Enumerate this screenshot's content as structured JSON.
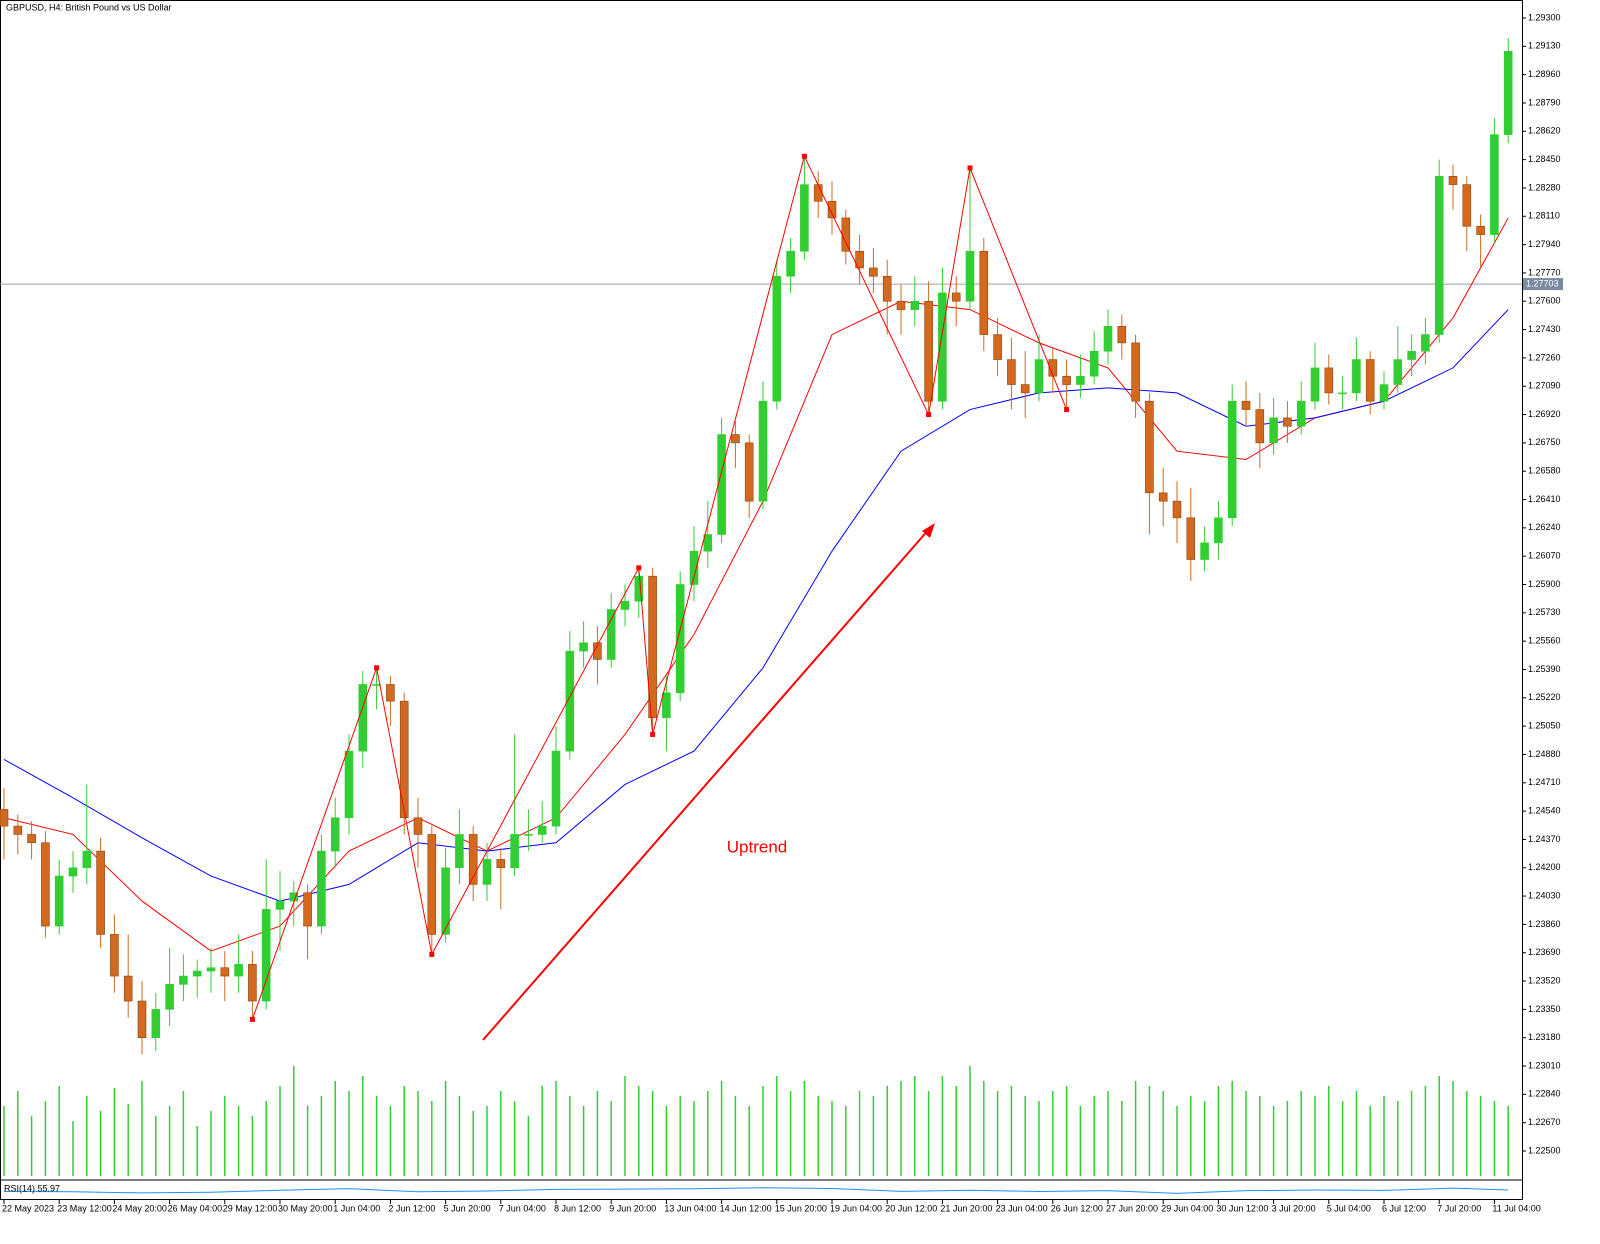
{
  "chart_data": {
    "type": "candlestick",
    "title": "GBPUSD, H4: British Pound vs US Dollar",
    "up_color": "#32cd32",
    "down_color": "#d2691e",
    "categories": [
      "22 May 2023",
      null,
      null,
      null,
      "23 May 12:00",
      null,
      null,
      null,
      "24 May 20:00",
      null,
      null,
      null,
      "26 May 04:00",
      null,
      null,
      null,
      "29 May 12:00",
      null,
      null,
      null,
      "30 May 20:00",
      null,
      null,
      null,
      "1 Jun 04:00",
      null,
      null,
      null,
      "2 Jun 12:00",
      null,
      null,
      null,
      "5 Jun 20:00",
      null,
      null,
      null,
      "7 Jun 04:00",
      null,
      null,
      null,
      "8 Jun 12:00",
      null,
      null,
      null,
      "9 Jun 20:00",
      null,
      null,
      null,
      "13 Jun 04:00",
      null,
      null,
      null,
      "14 Jun 12:00",
      null,
      null,
      null,
      "15 Jun 20:00",
      null,
      null,
      null,
      "19 Jun 04:00",
      null,
      null,
      null,
      "20 Jun 12:00",
      null,
      null,
      null,
      "21 Jun 20:00",
      null,
      null,
      null,
      "23 Jun 04:00",
      null,
      null,
      null,
      "26 Jun 12:00",
      null,
      null,
      null,
      "27 Jun 20:00",
      null,
      null,
      null,
      "29 Jun 04:00",
      null,
      null,
      null,
      "30 Jun 12:00",
      null,
      null,
      null,
      "3 Jul 20:00",
      null,
      null,
      null,
      "5 Jul 04:00",
      null,
      null,
      null,
      "6 Jul 12:00",
      null,
      null,
      null,
      "7 Jul 20:00",
      null,
      null,
      null,
      "11 Jul 04:00",
      null
    ],
    "ohlc": [
      [
        1.2455,
        1.2468,
        1.2425,
        1.2445
      ],
      [
        1.2445,
        1.2452,
        1.2428,
        1.244
      ],
      [
        1.244,
        1.2448,
        1.2425,
        1.2435
      ],
      [
        1.2435,
        1.2442,
        1.2378,
        1.2385
      ],
      [
        1.2385,
        1.2425,
        1.238,
        1.2415
      ],
      [
        1.2415,
        1.243,
        1.2405,
        1.242
      ],
      [
        1.242,
        1.247,
        1.241,
        1.243
      ],
      [
        1.243,
        1.2438,
        1.2372,
        1.238
      ],
      [
        1.238,
        1.2392,
        1.2345,
        1.2355
      ],
      [
        1.2355,
        1.238,
        1.233,
        1.234
      ],
      [
        1.234,
        1.2352,
        1.2308,
        1.2318
      ],
      [
        1.2318,
        1.2345,
        1.231,
        1.2335
      ],
      [
        1.2335,
        1.2372,
        1.2325,
        1.235
      ],
      [
        1.235,
        1.2368,
        1.234,
        1.2355
      ],
      [
        1.2355,
        1.2365,
        1.2342,
        1.2358
      ],
      [
        1.2358,
        1.2372,
        1.2345,
        1.236
      ],
      [
        1.236,
        1.237,
        1.234,
        1.2355
      ],
      [
        1.2355,
        1.238,
        1.2345,
        1.2362
      ],
      [
        1.2362,
        1.237,
        1.2329,
        1.234
      ],
      [
        1.234,
        1.2425,
        1.2335,
        1.2395
      ],
      [
        1.2395,
        1.2418,
        1.237,
        1.24
      ],
      [
        1.24,
        1.2412,
        1.2385,
        1.2405
      ],
      [
        1.2405,
        1.241,
        1.2365,
        1.2385
      ],
      [
        1.2385,
        1.244,
        1.238,
        1.243
      ],
      [
        1.243,
        1.2462,
        1.242,
        1.245
      ],
      [
        1.245,
        1.25,
        1.244,
        1.249
      ],
      [
        1.249,
        1.2538,
        1.248,
        1.253
      ],
      [
        1.253,
        1.254,
        1.2515,
        1.253
      ],
      [
        1.253,
        1.2535,
        1.2505,
        1.252
      ],
      [
        1.252,
        1.2525,
        1.244,
        1.245
      ],
      [
        1.245,
        1.2462,
        1.242,
        1.244
      ],
      [
        1.244,
        1.2445,
        1.2368,
        1.238
      ],
      [
        1.238,
        1.2432,
        1.2375,
        1.242
      ],
      [
        1.242,
        1.2455,
        1.241,
        1.244
      ],
      [
        1.244,
        1.2445,
        1.24,
        1.241
      ],
      [
        1.241,
        1.2435,
        1.24,
        1.2425
      ],
      [
        1.2425,
        1.2432,
        1.2395,
        1.242
      ],
      [
        1.242,
        1.25,
        1.2415,
        1.244
      ],
      [
        1.244,
        1.2455,
        1.243,
        1.244
      ],
      [
        1.244,
        1.246,
        1.2435,
        1.2445
      ],
      [
        1.2445,
        1.2505,
        1.244,
        1.249
      ],
      [
        1.249,
        1.2562,
        1.2485,
        1.255
      ],
      [
        1.255,
        1.2568,
        1.254,
        1.2555
      ],
      [
        1.2555,
        1.2565,
        1.253,
        1.2545
      ],
      [
        1.2545,
        1.2585,
        1.254,
        1.2575
      ],
      [
        1.2575,
        1.259,
        1.2565,
        1.258
      ],
      [
        1.258,
        1.26,
        1.257,
        1.2595
      ],
      [
        1.2595,
        1.26,
        1.25,
        1.251
      ],
      [
        1.251,
        1.2535,
        1.249,
        1.2525
      ],
      [
        1.2525,
        1.2598,
        1.252,
        1.259
      ],
      [
        1.259,
        1.2625,
        1.258,
        1.261
      ],
      [
        1.261,
        1.264,
        1.26,
        1.262
      ],
      [
        1.262,
        1.269,
        1.2615,
        1.268
      ],
      [
        1.268,
        1.2688,
        1.266,
        1.2675
      ],
      [
        1.2675,
        1.268,
        1.263,
        1.264
      ],
      [
        1.264,
        1.2712,
        1.2635,
        1.27
      ],
      [
        1.27,
        1.2785,
        1.2695,
        1.2775
      ],
      [
        1.2775,
        1.2798,
        1.2765,
        1.279
      ],
      [
        1.279,
        1.2847,
        1.2785,
        1.283
      ],
      [
        1.283,
        1.2838,
        1.281,
        1.282
      ],
      [
        1.282,
        1.2832,
        1.28,
        1.281
      ],
      [
        1.281,
        1.2815,
        1.2782,
        1.279
      ],
      [
        1.279,
        1.28,
        1.277,
        1.278
      ],
      [
        1.278,
        1.2792,
        1.2765,
        1.2775
      ],
      [
        1.2775,
        1.2785,
        1.274,
        1.276
      ],
      [
        1.276,
        1.277,
        1.274,
        1.2755
      ],
      [
        1.2755,
        1.2775,
        1.2745,
        1.276
      ],
      [
        1.276,
        1.2772,
        1.2692,
        1.27
      ],
      [
        1.27,
        1.278,
        1.2695,
        1.2765
      ],
      [
        1.2765,
        1.2775,
        1.2745,
        1.276
      ],
      [
        1.276,
        1.284,
        1.2755,
        1.279
      ],
      [
        1.279,
        1.2798,
        1.273,
        1.274
      ],
      [
        1.274,
        1.275,
        1.2715,
        1.2725
      ],
      [
        1.2725,
        1.2738,
        1.2695,
        1.271
      ],
      [
        1.271,
        1.273,
        1.269,
        1.2705
      ],
      [
        1.2705,
        1.274,
        1.27,
        1.2725
      ],
      [
        1.2725,
        1.2732,
        1.2705,
        1.2715
      ],
      [
        1.2715,
        1.2725,
        1.2695,
        1.271
      ],
      [
        1.271,
        1.2728,
        1.2702,
        1.2715
      ],
      [
        1.2715,
        1.2742,
        1.271,
        1.273
      ],
      [
        1.273,
        1.2755,
        1.2722,
        1.2745
      ],
      [
        1.2745,
        1.2752,
        1.2725,
        1.2735
      ],
      [
        1.2735,
        1.274,
        1.269,
        1.27
      ],
      [
        1.27,
        1.2705,
        1.262,
        1.2645
      ],
      [
        1.2645,
        1.266,
        1.2625,
        1.264
      ],
      [
        1.264,
        1.2652,
        1.2615,
        1.263
      ],
      [
        1.263,
        1.2648,
        1.2592,
        1.2605
      ],
      [
        1.2605,
        1.2625,
        1.2598,
        1.2615
      ],
      [
        1.2615,
        1.264,
        1.2605,
        1.263
      ],
      [
        1.263,
        1.271,
        1.2625,
        1.27
      ],
      [
        1.27,
        1.2712,
        1.2685,
        1.2695
      ],
      [
        1.2695,
        1.2705,
        1.266,
        1.2675
      ],
      [
        1.2675,
        1.2702,
        1.2668,
        1.269
      ],
      [
        1.269,
        1.27,
        1.2675,
        1.2685
      ],
      [
        1.2685,
        1.2712,
        1.268,
        1.27
      ],
      [
        1.27,
        1.2735,
        1.2695,
        1.272
      ],
      [
        1.272,
        1.2728,
        1.2698,
        1.2705
      ],
      [
        1.2705,
        1.2715,
        1.2695,
        1.2705
      ],
      [
        1.2705,
        1.2738,
        1.27,
        1.2725
      ],
      [
        1.2725,
        1.273,
        1.2692,
        1.27
      ],
      [
        1.27,
        1.2718,
        1.2695,
        1.271
      ],
      [
        1.271,
        1.2745,
        1.2705,
        1.2725
      ],
      [
        1.2725,
        1.274,
        1.2715,
        1.273
      ],
      [
        1.273,
        1.275,
        1.2722,
        1.274
      ],
      [
        1.274,
        1.2845,
        1.2735,
        1.2835
      ],
      [
        1.2835,
        1.2842,
        1.2815,
        1.283
      ],
      [
        1.283,
        1.2835,
        1.279,
        1.2805
      ],
      [
        1.2805,
        1.2812,
        1.278,
        1.28
      ],
      [
        1.28,
        1.287,
        1.2795,
        1.286
      ],
      [
        1.286,
        1.2918,
        1.2855,
        1.291
      ]
    ],
    "volume": [
      70,
      85,
      60,
      75,
      90,
      55,
      80,
      65,
      88,
      72,
      95,
      60,
      70,
      85,
      50,
      65,
      80,
      70,
      60,
      75,
      90,
      110,
      70,
      80,
      95,
      85,
      100,
      80,
      70,
      90,
      85,
      75,
      95,
      80,
      65,
      70,
      85,
      75,
      60,
      90,
      95,
      80,
      70,
      85,
      75,
      100,
      90,
      85,
      70,
      80,
      75,
      85,
      95,
      80,
      70,
      90,
      100,
      85,
      95,
      80,
      75,
      70,
      85,
      80,
      90,
      95,
      100,
      85,
      100,
      90,
      110,
      95,
      85,
      90,
      80,
      75,
      85,
      90,
      70,
      80,
      85,
      75,
      95,
      90,
      85,
      70,
      80,
      75,
      90,
      95,
      85,
      80,
      70,
      75,
      85,
      80,
      90,
      75,
      85,
      70,
      80,
      75,
      85,
      90,
      100,
      95,
      85,
      80,
      75,
      70
    ],
    "volume_color": "#32cd32",
    "moving_averages": [
      {
        "color": "#ff0000",
        "x": [
          0,
          5,
          10,
          15,
          20,
          25,
          30,
          35,
          40,
          45,
          50,
          55,
          60,
          65,
          70,
          75,
          80,
          85,
          90,
          95,
          100,
          105,
          109
        ],
        "values": [
          1.245,
          1.244,
          1.24,
          1.237,
          1.2385,
          1.243,
          1.245,
          1.243,
          1.245,
          1.25,
          1.256,
          1.264,
          1.274,
          1.276,
          1.2755,
          1.2735,
          1.272,
          1.267,
          1.2665,
          1.269,
          1.27,
          1.275,
          1.281
        ]
      },
      {
        "color": "#0000ff",
        "x": [
          0,
          5,
          10,
          15,
          20,
          25,
          30,
          35,
          40,
          45,
          50,
          55,
          60,
          65,
          70,
          75,
          80,
          85,
          90,
          95,
          100,
          105,
          109
        ],
        "values": [
          1.2485,
          1.2462,
          1.2438,
          1.2415,
          1.24,
          1.241,
          1.2435,
          1.243,
          1.2435,
          1.247,
          1.249,
          1.254,
          1.261,
          1.267,
          1.2695,
          1.2705,
          1.2708,
          1.2705,
          1.2685,
          1.269,
          1.27,
          1.272,
          1.2755
        ]
      }
    ],
    "zigzag": {
      "color": "#ff0000",
      "x": [
        18,
        27,
        31,
        46,
        47,
        58,
        67,
        70,
        77
      ],
      "values": [
        1.2329,
        1.254,
        1.2368,
        1.26,
        1.25,
        1.2847,
        1.2692,
        1.284,
        1.2695
      ]
    },
    "annotation": "Uptrend",
    "current_price": 1.27703,
    "ylim": [
      1.22338,
      1.29408
    ],
    "yticks": [
      {
        "value": 1.293,
        "label": "1.29300"
      },
      {
        "value": 1.2913,
        "label": "1.29130"
      },
      {
        "value": 1.2896,
        "label": "1.28960"
      },
      {
        "value": 1.2879,
        "label": "1.28790"
      },
      {
        "value": 1.2862,
        "label": "1.28620"
      },
      {
        "value": 1.2845,
        "label": "1.28450"
      },
      {
        "value": 1.2828,
        "label": "1.28280"
      },
      {
        "value": 1.2811,
        "label": "1.28110"
      },
      {
        "value": 1.2794,
        "label": "1.27940"
      },
      {
        "value": 1.2777,
        "label": "1.27770"
      },
      {
        "value": 1.276,
        "label": "1.27600"
      },
      {
        "value": 1.2743,
        "label": "1.27430"
      },
      {
        "value": 1.2726,
        "label": "1.27260"
      },
      {
        "value": 1.2709,
        "label": "1.27090"
      },
      {
        "value": 1.2692,
        "label": "1.26920"
      },
      {
        "value": 1.2675,
        "label": "1.26750"
      },
      {
        "value": 1.2658,
        "label": "1.26580"
      },
      {
        "value": 1.2641,
        "label": "1.26410"
      },
      {
        "value": 1.2624,
        "label": "1.26240"
      },
      {
        "value": 1.2607,
        "label": "1.26070"
      },
      {
        "value": 1.259,
        "label": "1.25900"
      },
      {
        "value": 1.2573,
        "label": "1.25730"
      },
      {
        "value": 1.2556,
        "label": "1.25560"
      },
      {
        "value": 1.2539,
        "label": "1.25390"
      },
      {
        "value": 1.2522,
        "label": "1.25220"
      },
      {
        "value": 1.2505,
        "label": "1.25050"
      },
      {
        "value": 1.2488,
        "label": "1.24880"
      },
      {
        "value": 1.2471,
        "label": "1.24710"
      },
      {
        "value": 1.2454,
        "label": "1.24540"
      },
      {
        "value": 1.2437,
        "label": "1.24370"
      },
      {
        "value": 1.242,
        "label": "1.24200"
      },
      {
        "value": 1.2403,
        "label": "1.24030"
      },
      {
        "value": 1.2386,
        "label": "1.23860"
      },
      {
        "value": 1.2369,
        "label": "1.23690"
      },
      {
        "value": 1.2352,
        "label": "1.23520"
      },
      {
        "value": 1.2335,
        "label": "1.23350"
      },
      {
        "value": 1.2318,
        "label": "1.23180"
      },
      {
        "value": 1.2301,
        "label": "1.23010"
      },
      {
        "value": 1.2284,
        "label": "1.22840"
      },
      {
        "value": 1.2267,
        "label": "1.22670"
      },
      {
        "value": 1.225,
        "label": "1.22500"
      }
    ],
    "rsi": {
      "label": "RSI(14) 55.97",
      "color": "#1e90ff",
      "ylim": [
        0,
        100
      ],
      "x": [
        0,
        5,
        10,
        15,
        20,
        25,
        30,
        35,
        40,
        45,
        50,
        55,
        60,
        65,
        70,
        75,
        80,
        85,
        90,
        95,
        100,
        105,
        109
      ],
      "values": [
        48,
        45,
        38,
        42,
        55,
        65,
        45,
        50,
        60,
        62,
        64,
        70,
        66,
        48,
        55,
        47,
        52,
        35,
        52,
        56,
        54,
        68,
        56
      ]
    }
  }
}
